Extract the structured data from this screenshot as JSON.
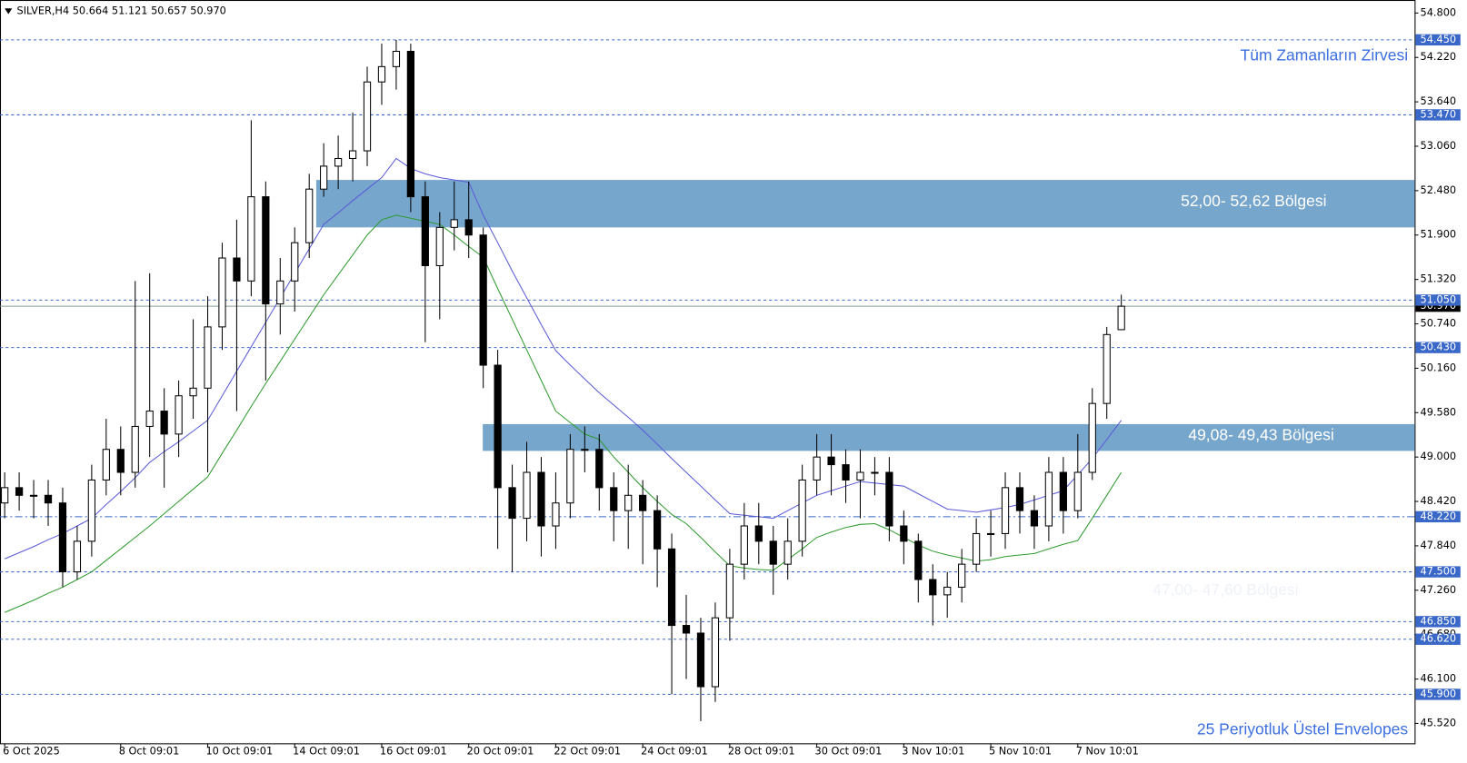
{
  "chart_data": {
    "type": "candlestick",
    "header": "SILVER,H4  50.664 51.121 50.657 50.970",
    "categories": [
      "6 Oct 2025",
      null,
      null,
      null,
      null,
      null,
      null,
      null,
      "8 Oct 09:01",
      null,
      null,
      null,
      null,
      null,
      "10 Oct 09:01",
      null,
      null,
      null,
      null,
      null,
      "14 Oct 09:01",
      null,
      null,
      null,
      null,
      null,
      "16 Oct 09:01",
      null,
      null,
      null,
      null,
      null,
      "20 Oct 09:01",
      null,
      null,
      null,
      null,
      null,
      "22 Oct 09:01",
      null,
      null,
      null,
      null,
      null,
      "24 Oct 09:01",
      null,
      null,
      null,
      null,
      null,
      "28 Oct 09:01",
      null,
      null,
      null,
      null,
      null,
      "30 Oct 09:01",
      null,
      null,
      null,
      null,
      null,
      "3 Nov 10:01",
      null,
      null,
      null,
      null,
      null,
      "5 Nov 10:01",
      null,
      null,
      null,
      null,
      null,
      "7 Nov 10:01",
      null,
      null,
      null
    ],
    "open": [
      48.4,
      48.6,
      48.5,
      48.5,
      48.4,
      47.5,
      47.9,
      48.7,
      49.1,
      48.8,
      49.4,
      49.6,
      49.3,
      49.8,
      49.9,
      50.7,
      51.6,
      51.3,
      52.4,
      51.0,
      51.3,
      51.8,
      52.5,
      52.8,
      52.9,
      53.0,
      53.9,
      54.1,
      54.3,
      52.4,
      51.5,
      52.0,
      52.1,
      51.9,
      50.2,
      48.6,
      48.2,
      48.8,
      48.1,
      48.4,
      49.1,
      49.1,
      48.6,
      48.3,
      48.5,
      48.3,
      47.8,
      46.8,
      46.7,
      46.0,
      46.9,
      47.6,
      48.1,
      47.9,
      47.6,
      47.9,
      48.7,
      49.0,
      48.9,
      48.7,
      48.8,
      48.8,
      48.1,
      47.9,
      47.4,
      47.2,
      47.3,
      47.6,
      48.0,
      48.0,
      48.6,
      48.3,
      48.1,
      48.8,
      48.3,
      48.8,
      49.7,
      50.664
    ],
    "high": [
      48.8,
      48.8,
      48.7,
      48.7,
      48.6,
      48.1,
      48.9,
      49.5,
      49.4,
      51.3,
      51.4,
      49.9,
      50.0,
      50.8,
      51.1,
      51.8,
      52.1,
      53.4,
      52.6,
      51.6,
      52.0,
      52.7,
      53.1,
      53.2,
      53.5,
      54.1,
      54.4,
      54.45,
      54.4,
      52.6,
      52.2,
      52.6,
      52.6,
      52.0,
      50.4,
      48.9,
      49.2,
      49.0,
      48.8,
      49.3,
      49.4,
      49.3,
      48.8,
      48.9,
      48.7,
      48.5,
      48.0,
      47.2,
      46.9,
      47.1,
      47.8,
      48.4,
      48.4,
      48.1,
      48.2,
      48.9,
      49.3,
      49.3,
      49.1,
      49.1,
      49.0,
      49.0,
      48.3,
      48.0,
      47.6,
      47.5,
      47.8,
      48.2,
      48.3,
      48.8,
      48.8,
      48.5,
      49.0,
      49.0,
      49.3,
      49.9,
      50.7,
      51.121
    ],
    "low": [
      48.2,
      48.3,
      48.2,
      48.1,
      47.3,
      47.4,
      47.7,
      48.5,
      48.5,
      48.6,
      49.0,
      48.6,
      49.0,
      49.5,
      48.8,
      50.4,
      49.6,
      51.1,
      50.0,
      50.6,
      50.9,
      51.6,
      52.4,
      52.5,
      52.6,
      52.8,
      53.6,
      53.8,
      52.2,
      50.5,
      50.8,
      51.7,
      51.6,
      49.9,
      47.8,
      47.5,
      47.9,
      47.7,
      47.8,
      48.2,
      48.8,
      48.3,
      47.9,
      47.8,
      47.6,
      47.3,
      45.9,
      46.1,
      45.55,
      45.8,
      46.6,
      47.4,
      47.6,
      47.2,
      47.4,
      47.7,
      48.5,
      48.5,
      48.4,
      48.2,
      48.5,
      47.9,
      47.6,
      47.1,
      46.8,
      46.9,
      47.1,
      47.5,
      47.7,
      47.8,
      48.0,
      47.8,
      47.9,
      48.0,
      48.2,
      48.7,
      49.5,
      50.657
    ],
    "close": [
      48.6,
      48.5,
      48.5,
      48.4,
      47.5,
      47.9,
      48.7,
      49.1,
      48.8,
      49.4,
      49.6,
      49.3,
      49.8,
      49.9,
      50.7,
      51.6,
      51.3,
      52.4,
      51.0,
      51.3,
      51.8,
      52.5,
      52.8,
      52.9,
      53.0,
      53.9,
      54.1,
      54.3,
      52.4,
      51.5,
      52.0,
      52.1,
      51.9,
      50.2,
      48.6,
      48.2,
      48.8,
      48.1,
      48.4,
      49.1,
      49.1,
      48.6,
      48.3,
      48.5,
      48.3,
      47.8,
      46.8,
      46.7,
      46.0,
      46.9,
      47.6,
      48.1,
      47.9,
      47.6,
      47.9,
      48.7,
      49.0,
      48.9,
      48.7,
      48.8,
      48.8,
      48.1,
      47.9,
      47.4,
      47.2,
      47.3,
      47.6,
      48.0,
      48.0,
      48.6,
      48.3,
      48.1,
      48.8,
      48.3,
      48.8,
      49.7,
      50.6,
      50.97
    ],
    "envelopes": [
      {
        "color": "#5a5ad8",
        "values": [
          47.67,
          47.75,
          47.83,
          47.92,
          48.0,
          48.1,
          48.2,
          48.38,
          48.55,
          48.73,
          48.93,
          49.07,
          49.2,
          49.34,
          49.48,
          49.8,
          50.12,
          50.44,
          50.76,
          51.08,
          51.4,
          51.72,
          52.04,
          52.19,
          52.35,
          52.5,
          52.65,
          52.9,
          52.77,
          52.7,
          52.65,
          52.62,
          52.59,
          52.16,
          51.8,
          51.43,
          51.08,
          50.73,
          50.39,
          50.2,
          50.02,
          49.84,
          49.68,
          49.52,
          49.35,
          49.17,
          48.98,
          48.8,
          48.62,
          48.44,
          48.26,
          48.24,
          48.22,
          48.2,
          48.3,
          48.4,
          48.5,
          48.56,
          48.62,
          48.68,
          48.66,
          48.64,
          48.62,
          48.52,
          48.42,
          48.32,
          48.3,
          48.28,
          48.31,
          48.34,
          48.38,
          48.44,
          48.5,
          48.56,
          48.77,
          48.98,
          49.23,
          49.48
        ]
      },
      {
        "color": "#2e9a2e",
        "values": [
          46.97,
          47.05,
          47.13,
          47.22,
          47.3,
          47.4,
          47.5,
          47.65,
          47.8,
          47.95,
          48.1,
          48.26,
          48.42,
          48.58,
          48.74,
          49.05,
          49.35,
          49.66,
          49.96,
          50.25,
          50.54,
          50.83,
          51.12,
          51.38,
          51.64,
          51.9,
          52.1,
          52.16,
          52.12,
          52.08,
          52.04,
          51.9,
          51.75,
          51.61,
          51.2,
          50.8,
          50.4,
          50.0,
          49.6,
          49.45,
          49.3,
          49.23,
          49.0,
          48.8,
          48.6,
          48.42,
          48.25,
          48.13,
          47.95,
          47.76,
          47.58,
          47.55,
          47.53,
          47.52,
          47.66,
          47.8,
          47.95,
          48.02,
          48.08,
          48.12,
          48.13,
          48.05,
          47.95,
          47.85,
          47.77,
          47.72,
          47.68,
          47.64,
          47.66,
          47.7,
          47.72,
          47.74,
          47.8,
          47.86,
          47.91,
          48.2,
          48.5,
          48.8
        ]
      }
    ],
    "ylim": [
      45.26,
      54.97
    ],
    "yticks": [
      {
        "value": 54.8,
        "label": "54.800"
      },
      {
        "value": 54.22,
        "label": "54.220"
      },
      {
        "value": 53.64,
        "label": "53.640"
      },
      {
        "value": 53.06,
        "label": "53.060"
      },
      {
        "value": 52.48,
        "label": "52.480"
      },
      {
        "value": 51.9,
        "label": "51.900"
      },
      {
        "value": 51.32,
        "label": "51.320"
      },
      {
        "value": 50.74,
        "label": "50.740"
      },
      {
        "value": 50.16,
        "label": "50.160"
      },
      {
        "value": 49.58,
        "label": "49.580"
      },
      {
        "value": 49.0,
        "label": "49.000"
      },
      {
        "value": 48.42,
        "label": "48.420"
      },
      {
        "value": 47.84,
        "label": "47.840"
      },
      {
        "value": 47.26,
        "label": "47.260"
      },
      {
        "value": 46.68,
        "label": "46.680"
      },
      {
        "value": 46.1,
        "label": "46.100"
      },
      {
        "value": 45.52,
        "label": "45.520"
      }
    ],
    "price_line": {
      "value": 50.97,
      "label": "50.970",
      "color": "#8a9a9a"
    },
    "levels": [
      {
        "value": 54.45,
        "label": "54.450"
      },
      {
        "value": 53.47,
        "label": "53.470"
      },
      {
        "value": 51.05,
        "label": "51.050"
      },
      {
        "value": 50.43,
        "label": "50.430"
      },
      {
        "value": 48.22,
        "label": "48.220",
        "style": "dashdot"
      },
      {
        "value": 47.5,
        "label": "47.500"
      },
      {
        "value": 46.85,
        "label": "46.850"
      },
      {
        "value": 46.62,
        "label": "46.620"
      },
      {
        "value": 45.9,
        "label": "45.900"
      }
    ],
    "level_color": "#3a68c8",
    "zones": [
      {
        "label": "52,00- 52,62 Bölgesi",
        "low": 52.0,
        "high": 52.62,
        "color": "#77a6cc"
      },
      {
        "label": "49,08- 49,43 Bölgesi",
        "low": 49.08,
        "high": 49.43,
        "color": "#77a6cc"
      }
    ],
    "annotations": [
      {
        "text": "Tüm Zamanların Zirvesi",
        "color": "#3c6fe0"
      },
      {
        "text": "47,00- 47,60 Bölgesi",
        "color": "#eef2f8"
      },
      {
        "text": "25 Periyotluk Üstel Envelopes",
        "color": "#3c6fe0"
      }
    ]
  }
}
